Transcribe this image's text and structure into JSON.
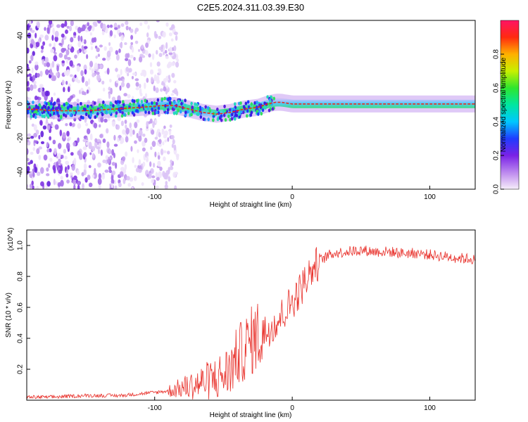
{
  "title": "C2E5.2024.311.03.39.E30",
  "chart_data": [
    {
      "type": "heatmap",
      "title": "C2E5.2024.311.03.39.E30",
      "xlabel": "Height of straight line (km)",
      "ylabel": "Frequency (Hz)",
      "xlim": [
        -193,
        133
      ],
      "ylim": [
        -50,
        49
      ],
      "xticks": [
        -100,
        0,
        100
      ],
      "xtick_labels": [
        "-100",
        "0",
        "100"
      ],
      "yticks": [
        -40,
        -20,
        0,
        20,
        40
      ],
      "ytick_labels": [
        "-40",
        "-20",
        "0",
        "20",
        "40"
      ],
      "colorbar": {
        "label": "Normalized spectral amplitude",
        "range": [
          0,
          1
        ],
        "ticks": [
          0.0,
          0.2,
          0.4,
          0.6,
          0.8
        ],
        "tick_labels": [
          "0.0",
          "0.2",
          "0.4",
          "0.6",
          "0.8"
        ]
      },
      "ridge_line": {
        "x": [
          -193,
          -170,
          -150,
          -130,
          -110,
          -95,
          -85,
          -75,
          -65,
          -55,
          -45,
          -35,
          -25,
          -18,
          -12,
          -8,
          0,
          20,
          50,
          90,
          133
        ],
        "y": [
          -3,
          -4,
          -4,
          -3,
          -2,
          -1,
          -1,
          -3,
          -5,
          -6,
          -5,
          -3,
          -2,
          0,
          1,
          1,
          0,
          0,
          0,
          0,
          0
        ]
      },
      "noise_region_x": [
        -193,
        -93
      ]
    },
    {
      "type": "line",
      "xlabel": "Height of straight line (km)",
      "ylabel": "SNR (10 * v/v)",
      "y_multiplier": "(x10^4)",
      "xlim": [
        -193,
        133
      ],
      "ylim": [
        0,
        1.1
      ],
      "xticks": [
        -100,
        0,
        100
      ],
      "xtick_labels": [
        "-100",
        "0",
        "100"
      ],
      "yticks": [
        0.2,
        0.4,
        0.6,
        0.8,
        1.0
      ],
      "ytick_labels": [
        "0.2",
        "0.4",
        "0.6",
        "0.8",
        "1.0"
      ],
      "color": "#e8302a",
      "series": [
        {
          "name": "SNR",
          "x": [
            -193,
            -175,
            -150,
            -125,
            -100,
            -90,
            -80,
            -70,
            -60,
            -50,
            -45,
            -40,
            -35,
            -30,
            -25,
            -20,
            -15,
            -10,
            -5,
            0,
            5,
            10,
            15,
            20,
            25,
            30,
            40,
            50,
            60,
            70,
            80,
            90,
            100,
            110,
            120,
            133
          ],
          "y": [
            0.02,
            0.02,
            0.03,
            0.03,
            0.05,
            0.06,
            0.08,
            0.1,
            0.13,
            0.16,
            0.2,
            0.28,
            0.33,
            0.38,
            0.42,
            0.44,
            0.48,
            0.52,
            0.58,
            0.64,
            0.7,
            0.78,
            0.85,
            0.9,
            0.93,
            0.95,
            0.96,
            0.97,
            0.96,
            0.96,
            0.95,
            0.95,
            0.94,
            0.93,
            0.92,
            0.91
          ]
        }
      ]
    }
  ]
}
